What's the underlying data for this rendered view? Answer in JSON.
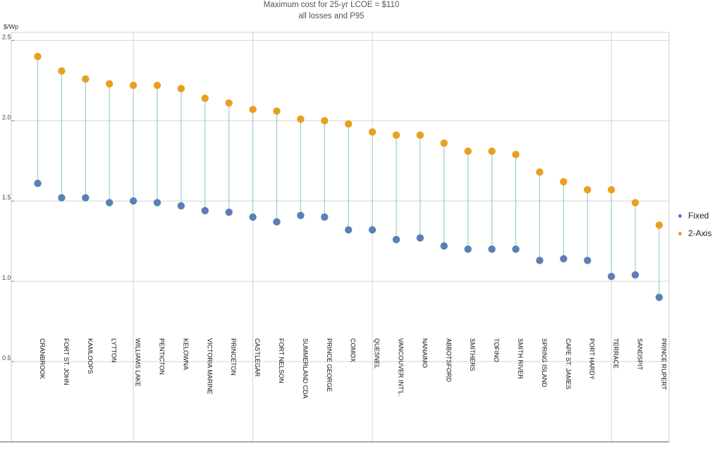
{
  "chart_data": {
    "type": "scatter",
    "title": "Maximum cost for 25-yr LCOE = $110",
    "subtitle": "all losses and P95",
    "ylabel": "$/Wp",
    "xlabel": "",
    "ylim": [
      0.0,
      2.55
    ],
    "yticks": [
      "0.5",
      "1.0",
      "1.5",
      "2.0",
      "2.5"
    ],
    "grid": true,
    "legend_position": "right",
    "categories": [
      "CRANBROOK",
      "FORT ST. JOHN",
      "KAMLOOPS",
      "LYTTON",
      "WILLIAMS LAKE",
      "PENTICTON",
      "KELOWNA",
      "VICTORIA MARINE",
      "PRINCETON",
      "CASTLEGAR",
      "FORT NELSON",
      "SUMMERLAND CDA",
      "PRINCE GEORGE",
      "COMOX",
      "QUESNEL",
      "VANCOUVER INT'L.",
      "NANAIMO",
      "ABBOTSFORD",
      "SMITHERS",
      "TOFINO",
      "SMITH RIVER",
      "SPRING ISLAND",
      "CAPE ST. JAMES",
      "PORT HARDY",
      "TERRACE",
      "SANDSPIT",
      "PRINCE RUPERT"
    ],
    "series": [
      {
        "name": "Fixed",
        "color": "#5b7fb8",
        "values": [
          1.61,
          1.52,
          1.52,
          1.49,
          1.5,
          1.49,
          1.47,
          1.44,
          1.43,
          1.4,
          1.37,
          1.41,
          1.4,
          1.32,
          1.32,
          1.26,
          1.27,
          1.22,
          1.2,
          1.2,
          1.2,
          1.13,
          1.14,
          1.13,
          1.03,
          1.04,
          0.9
        ]
      },
      {
        "name": "2-Axis",
        "color": "#e8a020",
        "values": [
          2.4,
          2.31,
          2.26,
          2.23,
          2.22,
          2.22,
          2.2,
          2.14,
          2.11,
          2.07,
          2.06,
          2.01,
          2.0,
          1.98,
          1.93,
          1.91,
          1.91,
          1.86,
          1.81,
          1.81,
          1.79,
          1.68,
          1.62,
          1.57,
          1.57,
          1.49,
          1.35
        ]
      }
    ]
  }
}
